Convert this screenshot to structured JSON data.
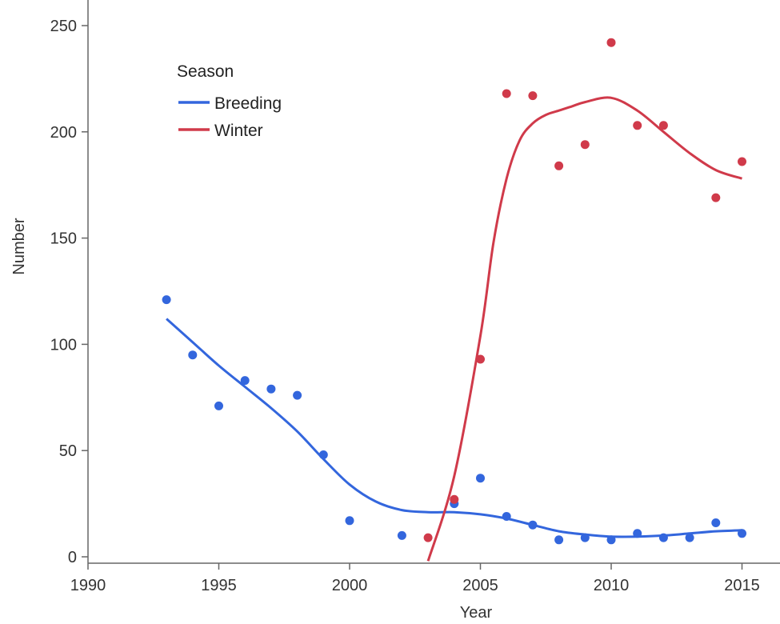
{
  "chart_data": {
    "type": "scatter",
    "title": "",
    "xlabel": "Year",
    "ylabel": "Number",
    "xlim": [
      1990,
      2016.5
    ],
    "ylim": [
      -3,
      260
    ],
    "xticks": [
      1990,
      1995,
      2000,
      2005,
      2010,
      2015
    ],
    "yticks": [
      0,
      50,
      100,
      150,
      200,
      250
    ],
    "grid": false,
    "legend": {
      "title": "Season",
      "position": "top-left"
    },
    "series": [
      {
        "name": "Breeding",
        "color": "#3366dd",
        "points": [
          [
            1993,
            121
          ],
          [
            1994,
            95
          ],
          [
            1995,
            71
          ],
          [
            1996,
            83
          ],
          [
            1997,
            79
          ],
          [
            1998,
            76
          ],
          [
            1999,
            48
          ],
          [
            2000,
            17
          ],
          [
            2002,
            10
          ],
          [
            2004,
            25
          ],
          [
            2005,
            37
          ],
          [
            2006,
            19
          ],
          [
            2007,
            15
          ],
          [
            2008,
            8
          ],
          [
            2009,
            9
          ],
          [
            2010,
            8
          ],
          [
            2011,
            11
          ],
          [
            2012,
            9
          ],
          [
            2013,
            9
          ],
          [
            2014,
            16
          ],
          [
            2015,
            11
          ]
        ],
        "smooth": [
          [
            1993,
            112
          ],
          [
            1994,
            101
          ],
          [
            1995,
            90
          ],
          [
            1996,
            80
          ],
          [
            1997,
            70
          ],
          [
            1998,
            59
          ],
          [
            1999,
            46
          ],
          [
            2000,
            34
          ],
          [
            2001,
            26
          ],
          [
            2002,
            22
          ],
          [
            2003,
            21
          ],
          [
            2004,
            21
          ],
          [
            2005,
            20
          ],
          [
            2006,
            18
          ],
          [
            2007,
            15
          ],
          [
            2008,
            12
          ],
          [
            2009,
            10.5
          ],
          [
            2010,
            9.5
          ],
          [
            2011,
            9.5
          ],
          [
            2012,
            10
          ],
          [
            2013,
            11
          ],
          [
            2014,
            12
          ],
          [
            2015,
            12.5
          ]
        ]
      },
      {
        "name": "Winter",
        "color": "#d03a4a",
        "points": [
          [
            2003,
            9
          ],
          [
            2004,
            27
          ],
          [
            2005,
            93
          ],
          [
            2006,
            218
          ],
          [
            2007,
            217
          ],
          [
            2008,
            184
          ],
          [
            2009,
            194
          ],
          [
            2010,
            242
          ],
          [
            2011,
            203
          ],
          [
            2012,
            203
          ],
          [
            2014,
            169
          ],
          [
            2015,
            186
          ]
        ],
        "smooth": [
          [
            2003,
            -2
          ],
          [
            2004,
            38
          ],
          [
            2005,
            104
          ],
          [
            2005.5,
            148
          ],
          [
            2006,
            178
          ],
          [
            2006.5,
            196
          ],
          [
            2007,
            204
          ],
          [
            2007.5,
            208
          ],
          [
            2008,
            210
          ],
          [
            2008.5,
            212
          ],
          [
            2009,
            214
          ],
          [
            2010,
            216
          ],
          [
            2011,
            210
          ],
          [
            2012,
            200
          ],
          [
            2013,
            190
          ],
          [
            2014,
            182
          ],
          [
            2015,
            178
          ]
        ]
      }
    ]
  }
}
